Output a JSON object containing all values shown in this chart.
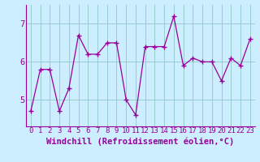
{
  "hours": [
    0,
    1,
    2,
    3,
    4,
    5,
    6,
    7,
    8,
    9,
    10,
    11,
    12,
    13,
    14,
    15,
    16,
    17,
    18,
    19,
    20,
    21,
    22,
    23
  ],
  "values": [
    4.7,
    5.8,
    5.8,
    4.7,
    5.3,
    6.7,
    6.2,
    6.2,
    6.5,
    6.5,
    5.0,
    4.6,
    6.4,
    6.4,
    6.4,
    7.2,
    5.9,
    6.1,
    6.0,
    6.0,
    5.5,
    6.1,
    5.9,
    6.6
  ],
  "line_color": "#990099",
  "marker": "+",
  "xlabel": "Windchill (Refroidissement éolien,°C)",
  "xlim": [
    -0.5,
    23.5
  ],
  "ylim": [
    4.3,
    7.5
  ],
  "yticks": [
    5,
    6,
    7
  ],
  "xtick_labels": [
    "0",
    "1",
    "2",
    "3",
    "4",
    "5",
    "6",
    "7",
    "8",
    "9",
    "10",
    "11",
    "12",
    "13",
    "14",
    "15",
    "16",
    "17",
    "18",
    "19",
    "20",
    "21",
    "22",
    "23"
  ],
  "bg_color": "#cceeff",
  "grid_color": "#99cccc",
  "font_family": "monospace",
  "xlabel_fontsize": 7.5,
  "tick_fontsize": 6.5,
  "axis_label_color": "#990099",
  "tick_color": "#990099",
  "line_width": 0.9,
  "marker_size": 4,
  "marker_edge_width": 1.0
}
